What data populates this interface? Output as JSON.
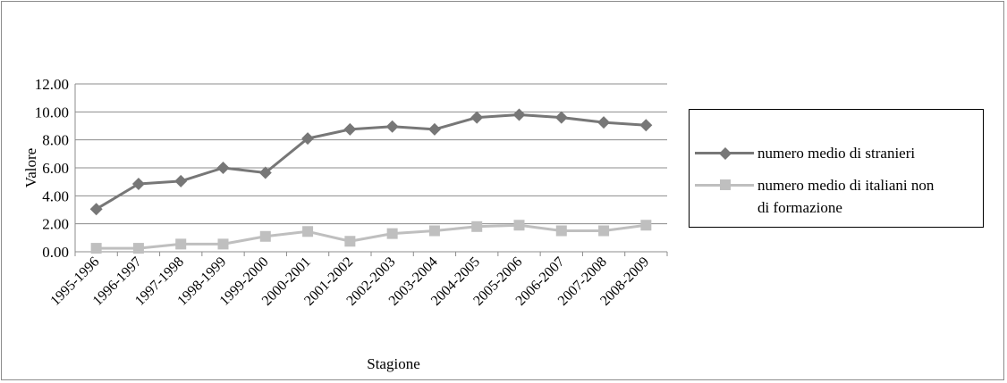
{
  "chart_data": {
    "type": "line",
    "xlabel": "Stagione",
    "ylabel": "Valore",
    "ylim": [
      0,
      12
    ],
    "yticks": [
      "0.00",
      "2.00",
      "4.00",
      "6.00",
      "8.00",
      "10.00",
      "12.00"
    ],
    "grid": true,
    "legend_position": "right",
    "categories": [
      "1995-1996",
      "1996-1997",
      "1997-1998",
      "1998-1999",
      "1999-2000",
      "2000-2001",
      "2001-2002",
      "2002-2003",
      "2003-2004",
      "2004-2005",
      "2005-2006",
      "2006-2007",
      "2007-2008",
      "2008-2009"
    ],
    "series": [
      {
        "name": "numero medio di stranieri",
        "marker": "diamond",
        "color": "#777777",
        "values": [
          3.05,
          4.85,
          5.05,
          6.0,
          5.65,
          8.1,
          8.75,
          8.95,
          8.75,
          9.6,
          9.8,
          9.6,
          9.25,
          9.05
        ]
      },
      {
        "name": "numero medio di italiani non di formazione",
        "marker": "square",
        "color": "#bfbfbf",
        "values": [
          0.25,
          0.25,
          0.55,
          0.55,
          1.1,
          1.45,
          0.75,
          1.3,
          1.5,
          1.8,
          1.9,
          1.5,
          1.5,
          1.9
        ]
      }
    ]
  },
  "legend": {
    "line1": "numero medio di stranieri",
    "line2a": "numero medio di italiani non",
    "line2b": "di formazione"
  }
}
